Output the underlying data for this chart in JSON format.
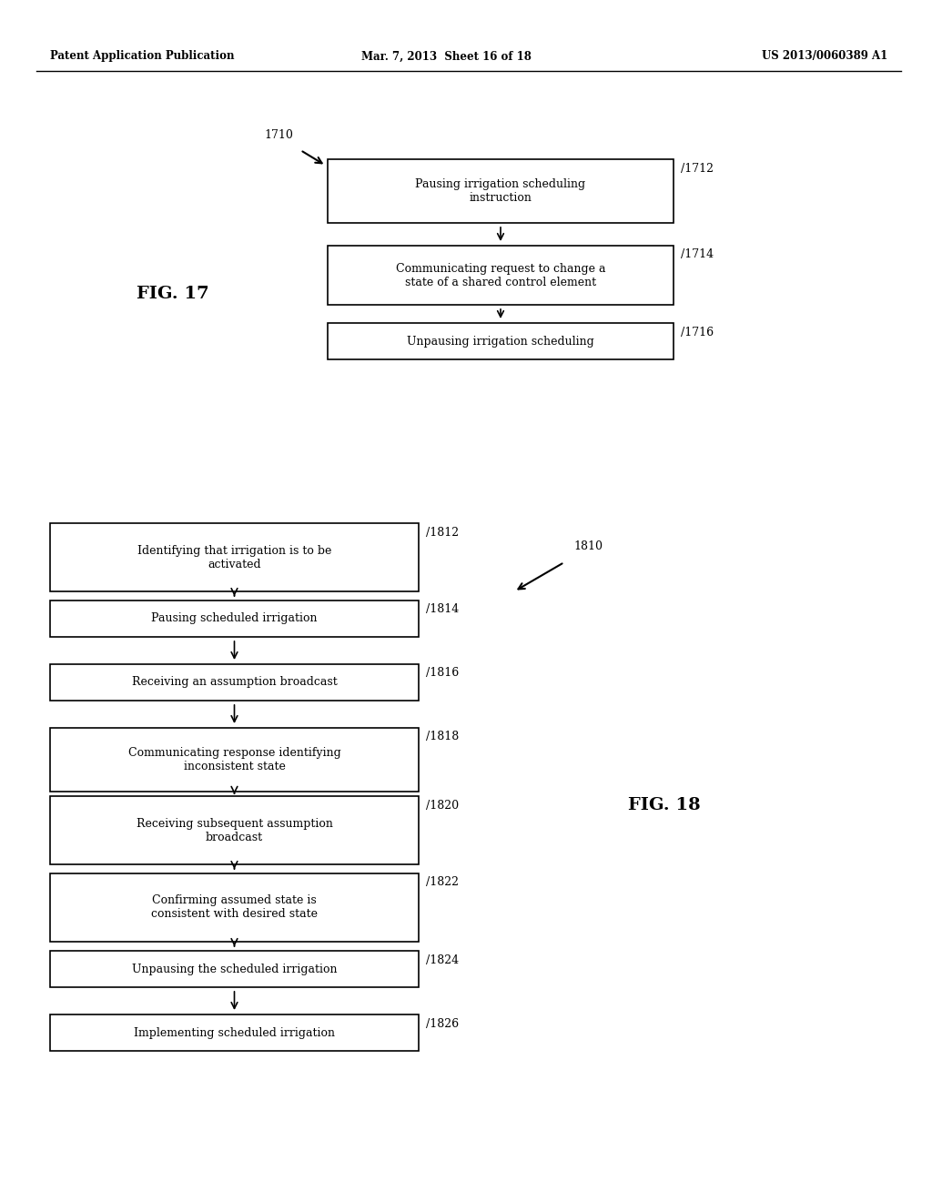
{
  "background_color": "#ffffff",
  "header_left": "Patent Application Publication",
  "header_center": "Mar. 7, 2013  Sheet 16 of 18",
  "header_right": "US 2013/0060389 A1",
  "fig17": {
    "label": "FIG. 17",
    "ref_label": "1710",
    "boxes": [
      {
        "text": "Pausing irrigation scheduling\ninstruction",
        "ref": "1712"
      },
      {
        "text": "Communicating request to change a\nstate of a shared control element",
        "ref": "1714"
      },
      {
        "text": "Unpausing irrigation scheduling",
        "ref": "1716"
      }
    ]
  },
  "fig18": {
    "label": "FIG. 18",
    "ref_label": "1810",
    "boxes": [
      {
        "text": "Identifying that irrigation is to be\nactivated",
        "ref": "1812"
      },
      {
        "text": "Pausing scheduled irrigation",
        "ref": "1814"
      },
      {
        "text": "Receiving an assumption broadcast",
        "ref": "1816"
      },
      {
        "text": "Communicating response identifying\ninconsistent state",
        "ref": "1818"
      },
      {
        "text": "Receiving subsequent assumption\nbroadcast",
        "ref": "1820"
      },
      {
        "text": "Confirming assumed state is\nconsistent with desired state",
        "ref": "1822"
      },
      {
        "text": "Unpausing the scheduled irrigation",
        "ref": "1824"
      },
      {
        "text": "Implementing scheduled irrigation",
        "ref": "1826"
      }
    ]
  }
}
